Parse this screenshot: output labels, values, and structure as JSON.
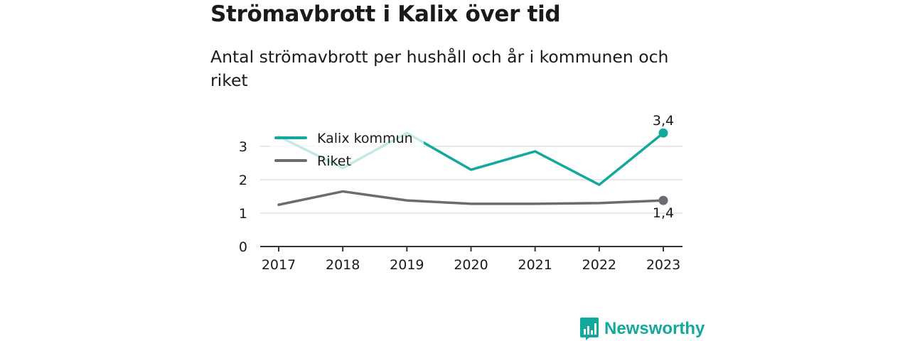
{
  "title": "Strömavbrott i Kalix över tid",
  "subtitle": "Antal strömavbrott per hushåll och år i kommunen och riket",
  "brand": {
    "name": "Newsworthy",
    "icon": "newsworthy-logo-icon",
    "color": "#12a89c"
  },
  "chart_data": {
    "type": "line",
    "title": "Strömavbrott i Kalix över tid",
    "subtitle": "Antal strömavbrott per hushåll och år i kommunen och riket",
    "xlabel": "",
    "ylabel": "",
    "x": [
      "2017",
      "2018",
      "2019",
      "2020",
      "2021",
      "2022",
      "2023"
    ],
    "ylim": [
      0,
      3.4
    ],
    "yticks": [
      "0",
      "1",
      "2",
      "3"
    ],
    "grid": true,
    "legend": "top-left",
    "series": [
      {
        "name": "Kalix kommun",
        "color": "#12a89c",
        "values": [
          3.3,
          2.35,
          3.4,
          2.3,
          2.85,
          1.85,
          3.4
        ],
        "end_label": "3,4"
      },
      {
        "name": "Riket",
        "color": "#6d6b72",
        "values": [
          1.25,
          1.65,
          1.38,
          1.28,
          1.28,
          1.3,
          1.38
        ],
        "end_label": "1,4"
      }
    ]
  }
}
